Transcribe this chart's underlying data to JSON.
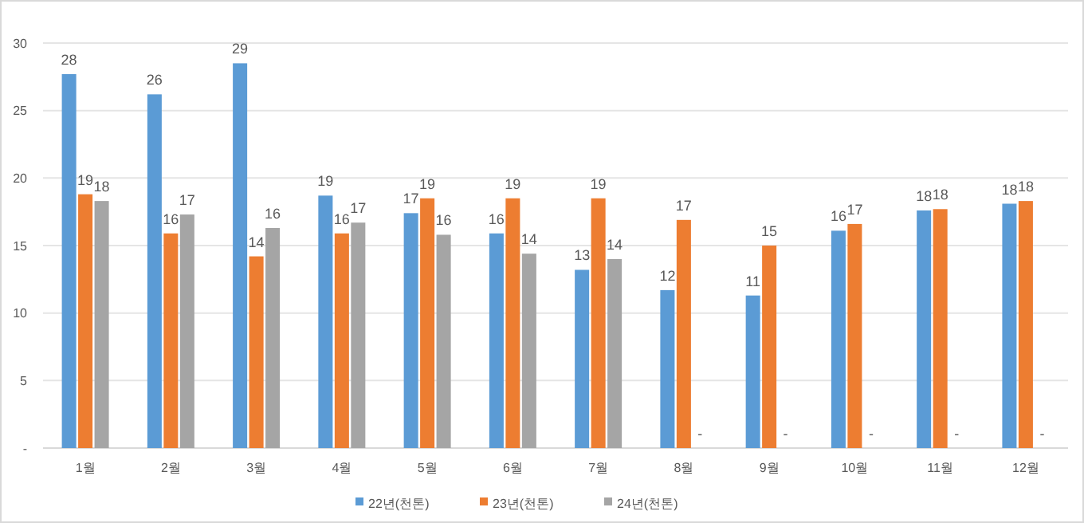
{
  "chart_data": {
    "type": "bar",
    "categories": [
      "1월",
      "2월",
      "3월",
      "4월",
      "5월",
      "6월",
      "7월",
      "8월",
      "9월",
      "10월",
      "11월",
      "12월"
    ],
    "series": [
      {
        "name": "22년(천톤)",
        "color": "#5b9bd5",
        "values": [
          27.7,
          26.2,
          28.5,
          18.7,
          17.4,
          15.9,
          13.2,
          11.7,
          11.3,
          16.1,
          17.6,
          18.1
        ],
        "value_labels": [
          "28",
          "26",
          "29",
          "19",
          "17",
          "16",
          "13",
          "12",
          "11",
          "16",
          "18",
          "18"
        ]
      },
      {
        "name": "23년(천톤)",
        "color": "#ed7d31",
        "values": [
          18.8,
          15.9,
          14.2,
          15.9,
          18.5,
          18.5,
          18.5,
          16.9,
          15.0,
          16.6,
          17.7,
          18.3
        ],
        "value_labels": [
          "19",
          "16",
          "14",
          "16",
          "19",
          "19",
          "19",
          "17",
          "15",
          "17",
          "18",
          "18"
        ]
      },
      {
        "name": "24년(천톤)",
        "color": "#a5a5a5",
        "values": [
          18.3,
          17.3,
          16.3,
          16.7,
          15.8,
          14.4,
          14.0,
          null,
          null,
          null,
          null,
          null
        ],
        "value_labels": [
          "18",
          "17",
          "16",
          "17",
          "16",
          "14",
          "14",
          null,
          null,
          null,
          null,
          null
        ]
      }
    ],
    "annotations": [
      {
        "text": "-",
        "x": "8월",
        "y": 0
      },
      {
        "text": "-",
        "x": "9월",
        "y": 0
      },
      {
        "text": "-",
        "x": "10월",
        "y": 0
      },
      {
        "text": "-",
        "x": "11월",
        "y": 0
      },
      {
        "text": "-",
        "x": "12월",
        "y": 0
      }
    ],
    "ylim": [
      0,
      30
    ],
    "yticks": [
      {
        "value": 0,
        "label": "-"
      },
      5,
      10,
      15,
      20,
      25,
      30
    ],
    "grid": "y",
    "legend": "bottom"
  }
}
